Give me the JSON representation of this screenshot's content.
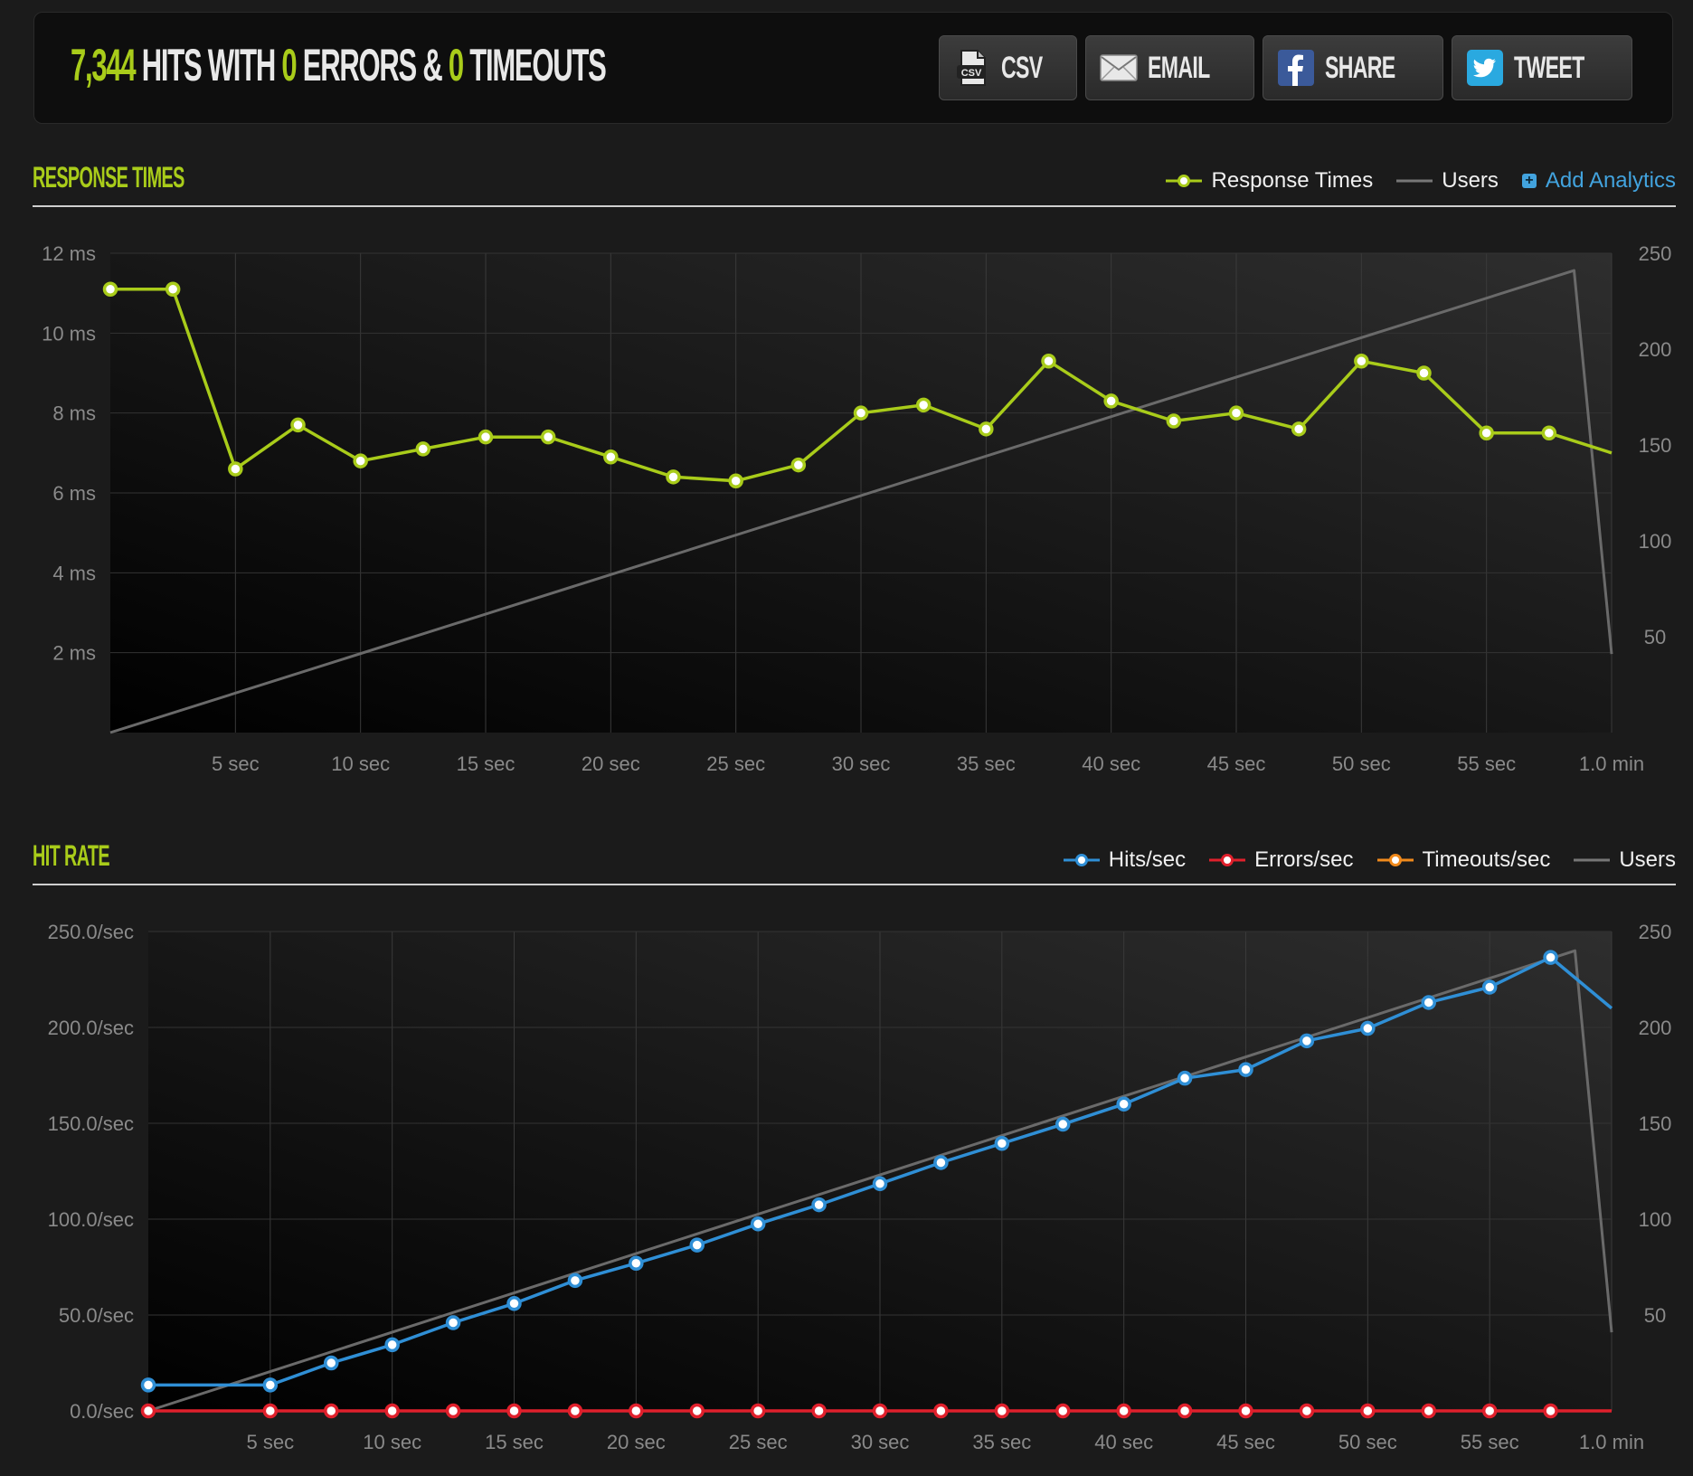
{
  "summary": {
    "hits": "7,344",
    "hits_label": "HITS WITH",
    "errors": "0",
    "errors_label": "ERRORS &",
    "timeouts": "0",
    "timeouts_label": "TIMEOUTS"
  },
  "share": {
    "csv": "CSV",
    "email": "EMAIL",
    "share": "SHARE",
    "tweet": "TWEET"
  },
  "colors": {
    "accent": "#a9cc1a",
    "hits": "#2f8fd6",
    "errors": "#e0202c",
    "timeouts": "#f08a1c",
    "users": "#6a6a6a",
    "link": "#42a3de"
  },
  "response_section": {
    "title": "RESPONSE TIMES",
    "legend": [
      "Response Times",
      "Users"
    ],
    "add_analytics": "Add Analytics"
  },
  "hitrate_section": {
    "title": "HIT RATE",
    "legend": [
      "Hits/sec",
      "Errors/sec",
      "Timeouts/sec",
      "Users"
    ]
  },
  "chart_data": [
    {
      "type": "line",
      "title": "RESPONSE TIMES",
      "x_ticks": [
        "5 sec",
        "10 sec",
        "15 sec",
        "20 sec",
        "25 sec",
        "30 sec",
        "35 sec",
        "40 sec",
        "45 sec",
        "50 sec",
        "55 sec",
        "1.0 min"
      ],
      "xlim": [
        0,
        60
      ],
      "y_left": {
        "ticks": [
          "2 ms",
          "4 ms",
          "6 ms",
          "8 ms",
          "10 ms",
          "12 ms"
        ],
        "lim": [
          0,
          12
        ]
      },
      "y_right": {
        "ticks": [
          "50",
          "100",
          "150",
          "200",
          "250"
        ],
        "lim": [
          0,
          250
        ]
      },
      "grid": true,
      "legend_position": "top-right",
      "series": [
        {
          "name": "Response Times",
          "axis": "left",
          "markers": true,
          "x": [
            0,
            2.5,
            5,
            7.5,
            10,
            12.5,
            15,
            17.5,
            20,
            22.5,
            25,
            27.5,
            30,
            32.5,
            35,
            37.5,
            40,
            42.5,
            45,
            47.5,
            50,
            52.5,
            55,
            57.5,
            60
          ],
          "y": [
            11.1,
            11.1,
            6.6,
            7.7,
            6.8,
            7.1,
            7.4,
            7.4,
            6.9,
            6.4,
            6.3,
            6.7,
            8.0,
            8.2,
            7.6,
            9.3,
            8.3,
            7.8,
            8.0,
            7.6,
            9.3,
            9.0,
            7.5,
            7.5,
            7.0
          ],
          "last_marker": false
        },
        {
          "name": "Users",
          "axis": "right",
          "markers": false,
          "x": [
            0,
            58.5,
            60
          ],
          "y": [
            0,
            241,
            41
          ]
        }
      ]
    },
    {
      "type": "line",
      "title": "HIT RATE",
      "x_ticks": [
        "5 sec",
        "10 sec",
        "15 sec",
        "20 sec",
        "25 sec",
        "30 sec",
        "35 sec",
        "40 sec",
        "45 sec",
        "50 sec",
        "55 sec",
        "1.0 min"
      ],
      "xlim": [
        0,
        60
      ],
      "y_left": {
        "ticks": [
          "0.0/sec",
          "50.0/sec",
          "100.0/sec",
          "150.0/sec",
          "200.0/sec",
          "250.0/sec"
        ],
        "lim": [
          0,
          250
        ]
      },
      "y_right": {
        "ticks": [
          "50",
          "100",
          "150",
          "200",
          "250"
        ],
        "lim": [
          0,
          250
        ]
      },
      "grid": true,
      "legend_position": "top-right",
      "series": [
        {
          "name": "Hits/sec",
          "axis": "left",
          "markers": true,
          "last_marker": false,
          "x": [
            0,
            5,
            7.5,
            10,
            12.5,
            15,
            17.5,
            20,
            22.5,
            25,
            27.5,
            30,
            32.5,
            35,
            37.5,
            40,
            42.5,
            45,
            47.5,
            50,
            52.5,
            55,
            57.5,
            60
          ],
          "y": [
            13.5,
            13.5,
            25,
            34.5,
            46,
            56,
            68,
            77,
            86.5,
            97.5,
            107.5,
            118.5,
            129.5,
            139.5,
            149.5,
            160,
            173.5,
            178,
            193,
            199.5,
            213,
            221,
            236.5,
            210
          ]
        },
        {
          "name": "Errors/sec",
          "axis": "left",
          "markers": true,
          "last_marker": false,
          "x": [
            0,
            5,
            7.5,
            10,
            12.5,
            15,
            17.5,
            20,
            22.5,
            25,
            27.5,
            30,
            32.5,
            35,
            37.5,
            40,
            42.5,
            45,
            47.5,
            50,
            52.5,
            55,
            57.5,
            60
          ],
          "y": [
            0,
            0,
            0,
            0,
            0,
            0,
            0,
            0,
            0,
            0,
            0,
            0,
            0,
            0,
            0,
            0,
            0,
            0,
            0,
            0,
            0,
            0,
            0,
            0
          ]
        },
        {
          "name": "Users",
          "axis": "right",
          "markers": false,
          "x": [
            0,
            58.5,
            60
          ],
          "y": [
            0,
            240,
            41
          ]
        }
      ]
    }
  ]
}
